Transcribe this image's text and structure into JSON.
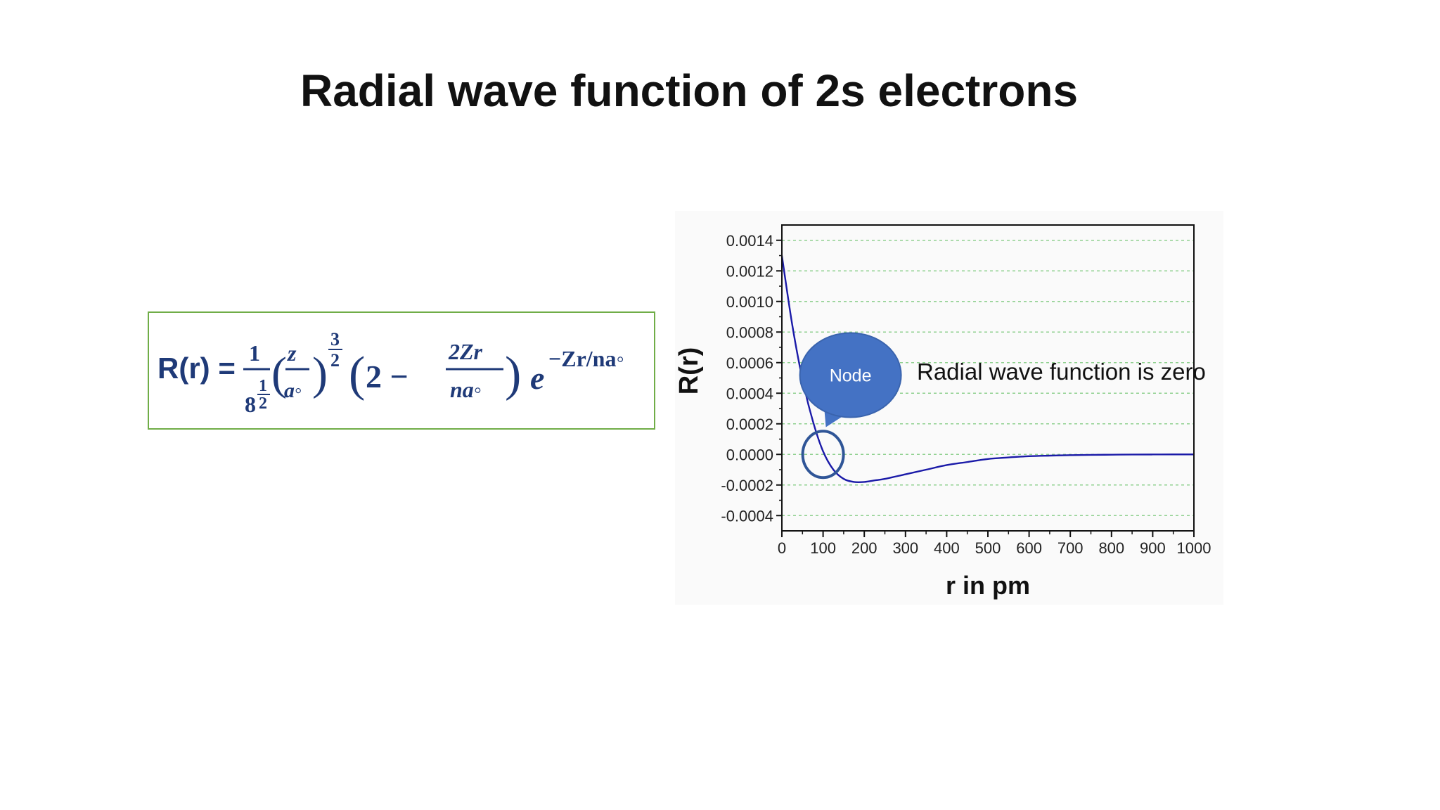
{
  "slide": {
    "title": "Radial wave function of 2s electrons"
  },
  "formula": {
    "lhs": "R(r) =",
    "coef_num": "1",
    "coef_den_base": "8",
    "coef_den_exp_num": "1",
    "coef_den_exp_den": "2",
    "paren1_num": "z",
    "paren1_den": "a◦",
    "paren1_exp_num": "3",
    "paren1_exp_den": "2",
    "paren2_left": "2 −",
    "paren2_num": "2Zr",
    "paren2_den": "na◦",
    "exp_base": "e",
    "exp_power": "−Zr/na◦",
    "color": "#1f3a78"
  },
  "annotation": {
    "bubble_label": "Node",
    "callout_text": "Radial wave function is zero",
    "bubble_color": "#4472c4",
    "ring_color": "#2f5597"
  },
  "chart_data": {
    "type": "line",
    "xlabel": "r in pm",
    "ylabel": "R(r)",
    "xlim": [
      0,
      1000
    ],
    "ylim": [
      -0.0005,
      0.0015
    ],
    "x_ticks": [
      0,
      100,
      200,
      300,
      400,
      500,
      600,
      700,
      800,
      900,
      1000
    ],
    "x_tick_labels": [
      "0",
      "100",
      "200",
      "300",
      "400",
      "500",
      "600",
      "700",
      "800",
      "900",
      "1000"
    ],
    "y_ticks": [
      0.0014,
      0.0012,
      0.001,
      0.0008,
      0.0006,
      0.0004,
      0.0002,
      0.0,
      -0.0002,
      -0.0004
    ],
    "y_tick_labels": [
      "0.0014",
      "0.0012",
      "0.0010",
      "0.0008",
      "0.0006",
      "0.0004",
      "0.0002",
      "0.0000",
      "-0.0002",
      "-0.0004"
    ],
    "grid": "horizontal dashed",
    "line_color": "#1a1aa8",
    "grid_color": "#8fd08f",
    "series": [
      {
        "x": [
          0,
          25,
          50,
          75,
          100,
          125,
          150,
          175,
          200,
          225,
          250,
          300,
          350,
          400,
          450,
          500,
          550,
          600,
          650,
          700,
          750,
          800,
          850,
          900,
          950,
          1000
        ],
        "y": [
          0.0013,
          0.00085,
          0.00049,
          0.00022,
          2e-05,
          -0.0001,
          -0.00016,
          -0.00018,
          -0.00018,
          -0.00017,
          -0.00016,
          -0.00013,
          -0.0001,
          -7e-05,
          -5e-05,
          -3e-05,
          -2e-05,
          -1.2e-05,
          -8e-06,
          -5e-06,
          -3e-06,
          -2e-06,
          -1e-06,
          -5e-07,
          0.0,
          0.0
        ]
      }
    ]
  }
}
